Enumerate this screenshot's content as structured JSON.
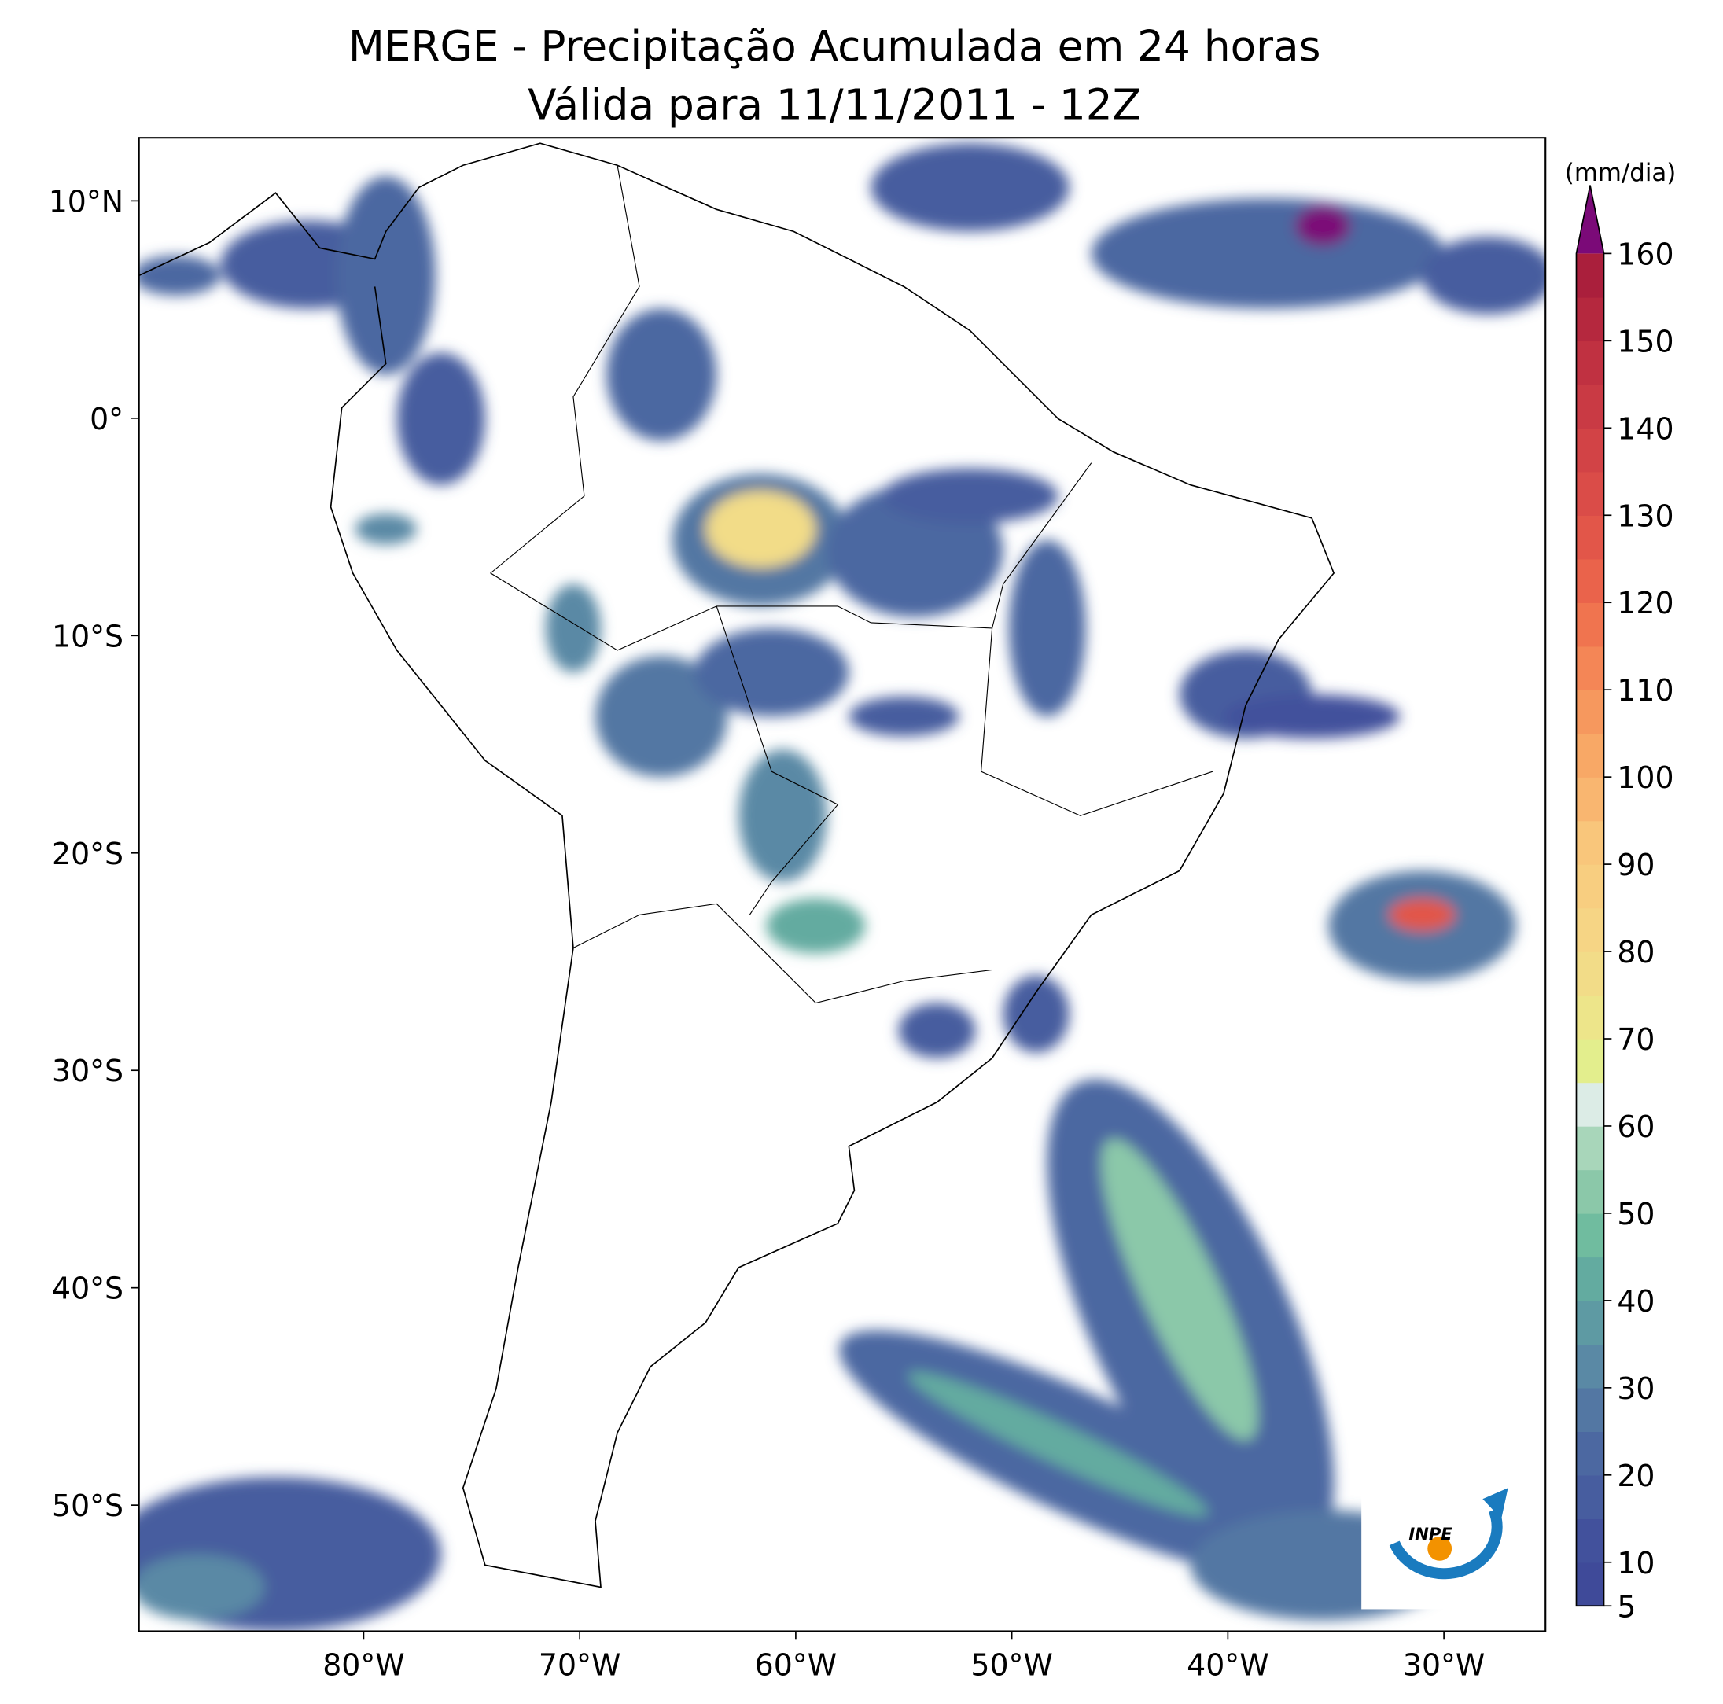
{
  "map": {
    "title": "MERGE - Precipitação Acumulada em 24 horas",
    "subtitle": "Válida para 11/11/2011 - 12Z",
    "xlim": [
      -90.4,
      -25.3
    ],
    "ylim": [
      -55.8,
      12.9
    ],
    "xticks": [
      {
        "value": -80,
        "label": "80°W"
      },
      {
        "value": -70,
        "label": "70°W"
      },
      {
        "value": -60,
        "label": "60°W"
      },
      {
        "value": -50,
        "label": "50°W"
      },
      {
        "value": -40,
        "label": "40°W"
      },
      {
        "value": -30,
        "label": "30°W"
      }
    ],
    "yticks": [
      {
        "value": 10,
        "label": "10°N"
      },
      {
        "value": 0,
        "label": "0°"
      },
      {
        "value": -10,
        "label": "10°S"
      },
      {
        "value": -20,
        "label": "20°S"
      },
      {
        "value": -30,
        "label": "30°S"
      },
      {
        "value": -40,
        "label": "40°S"
      },
      {
        "value": -50,
        "label": "50°S"
      }
    ],
    "logo_text": "INPE"
  },
  "colorbar": {
    "label": "(mm/dia)",
    "lim": [
      5,
      160
    ],
    "ticks": [
      5,
      10,
      20,
      30,
      40,
      50,
      60,
      70,
      80,
      90,
      100,
      110,
      120,
      130,
      140,
      150,
      160
    ],
    "colors": [
      "#3f4a99",
      "#42519c",
      "#475d9f",
      "#4c68a1",
      "#5377a3",
      "#5a89a5",
      "#5e9aa3",
      "#63aba0",
      "#70bc9f",
      "#8bc8a9",
      "#a8d6ba",
      "#dcece6",
      "#e3ee8d",
      "#ede58a",
      "#f2dc88",
      "#f6d585",
      "#f8ce80",
      "#f9c67b",
      "#f9b670",
      "#f8a866",
      "#f6985e",
      "#f48656",
      "#f0744f",
      "#ea634b",
      "#e25649",
      "#da4c48",
      "#d24346",
      "#c93a44",
      "#c03141",
      "#b5283e",
      "#aa1f3c"
    ],
    "extend_color": "#7b0a78"
  }
}
